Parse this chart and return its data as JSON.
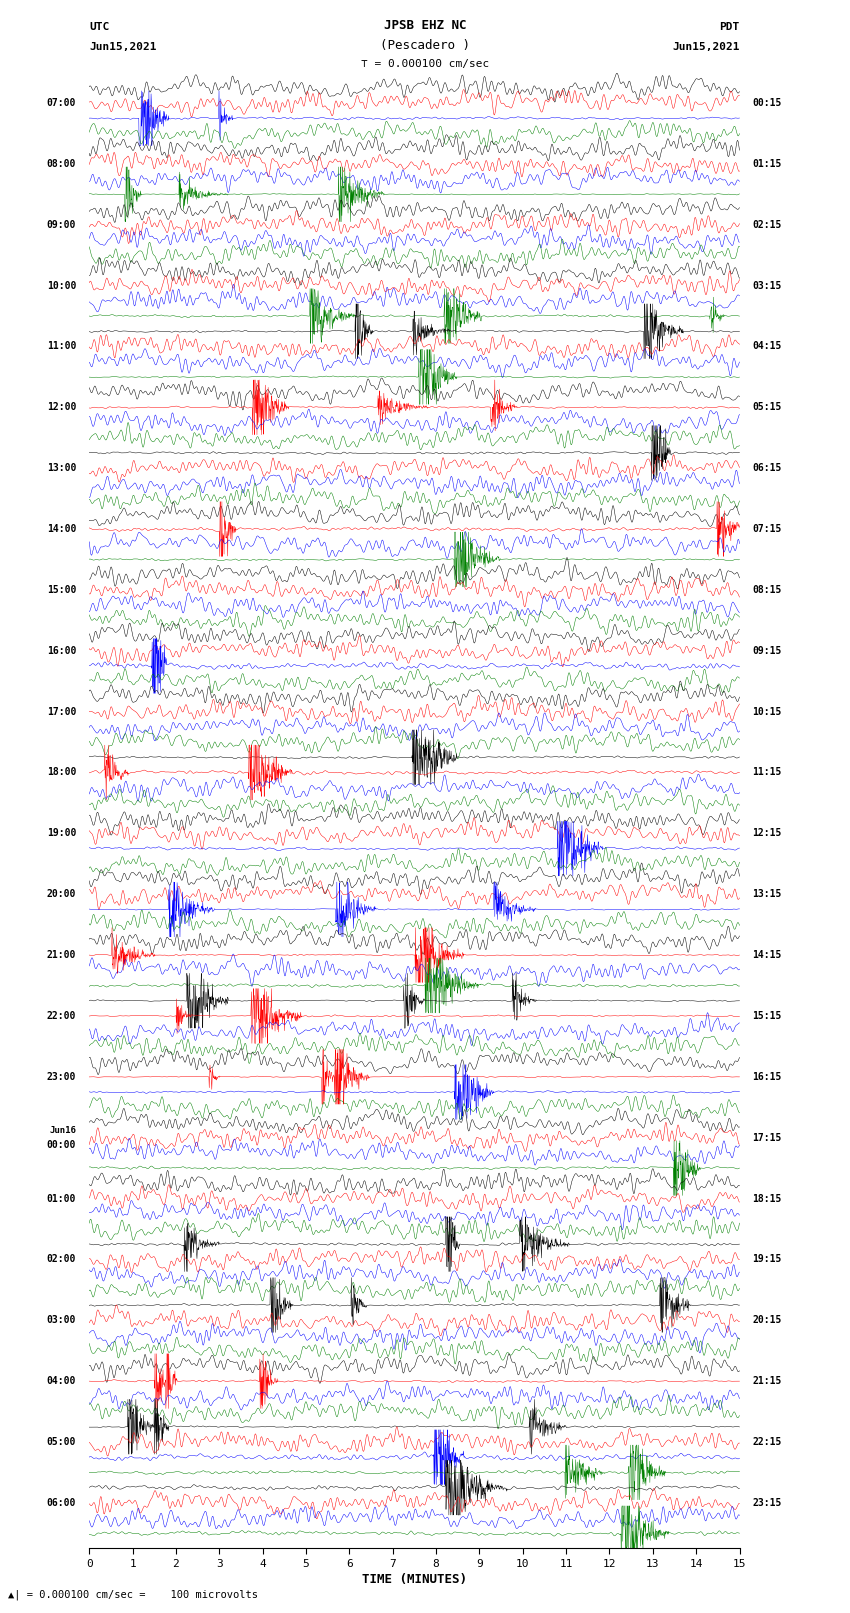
{
  "title_line1": "JPSB EHZ NC",
  "title_line2": "(Pescadero )",
  "scale_label": "= 0.000100 cm/sec",
  "left_label_top": "UTC",
  "left_label_date": "Jun15,2021",
  "right_label_top": "PDT",
  "right_label_date": "Jun15,2021",
  "xlabel": "TIME (MINUTES)",
  "bottom_note": "= 0.000100 cm/sec =    100 microvolts",
  "utc_times": [
    "07:00",
    "08:00",
    "09:00",
    "10:00",
    "11:00",
    "12:00",
    "13:00",
    "14:00",
    "15:00",
    "16:00",
    "17:00",
    "18:00",
    "19:00",
    "20:00",
    "21:00",
    "22:00",
    "23:00",
    "Jun16\n00:00",
    "01:00",
    "02:00",
    "03:00",
    "04:00",
    "05:00",
    "06:00"
  ],
  "pdt_times": [
    "00:15",
    "01:15",
    "02:15",
    "03:15",
    "04:15",
    "05:15",
    "06:15",
    "07:15",
    "08:15",
    "09:15",
    "10:15",
    "11:15",
    "12:15",
    "13:15",
    "14:15",
    "15:15",
    "16:15",
    "17:15",
    "18:15",
    "19:15",
    "20:15",
    "21:15",
    "22:15",
    "23:15"
  ],
  "num_rows": 24,
  "traces_per_row": 4,
  "colors": [
    "black",
    "red",
    "blue",
    "green"
  ],
  "background_color": "white",
  "fig_width": 8.5,
  "fig_height": 16.13
}
